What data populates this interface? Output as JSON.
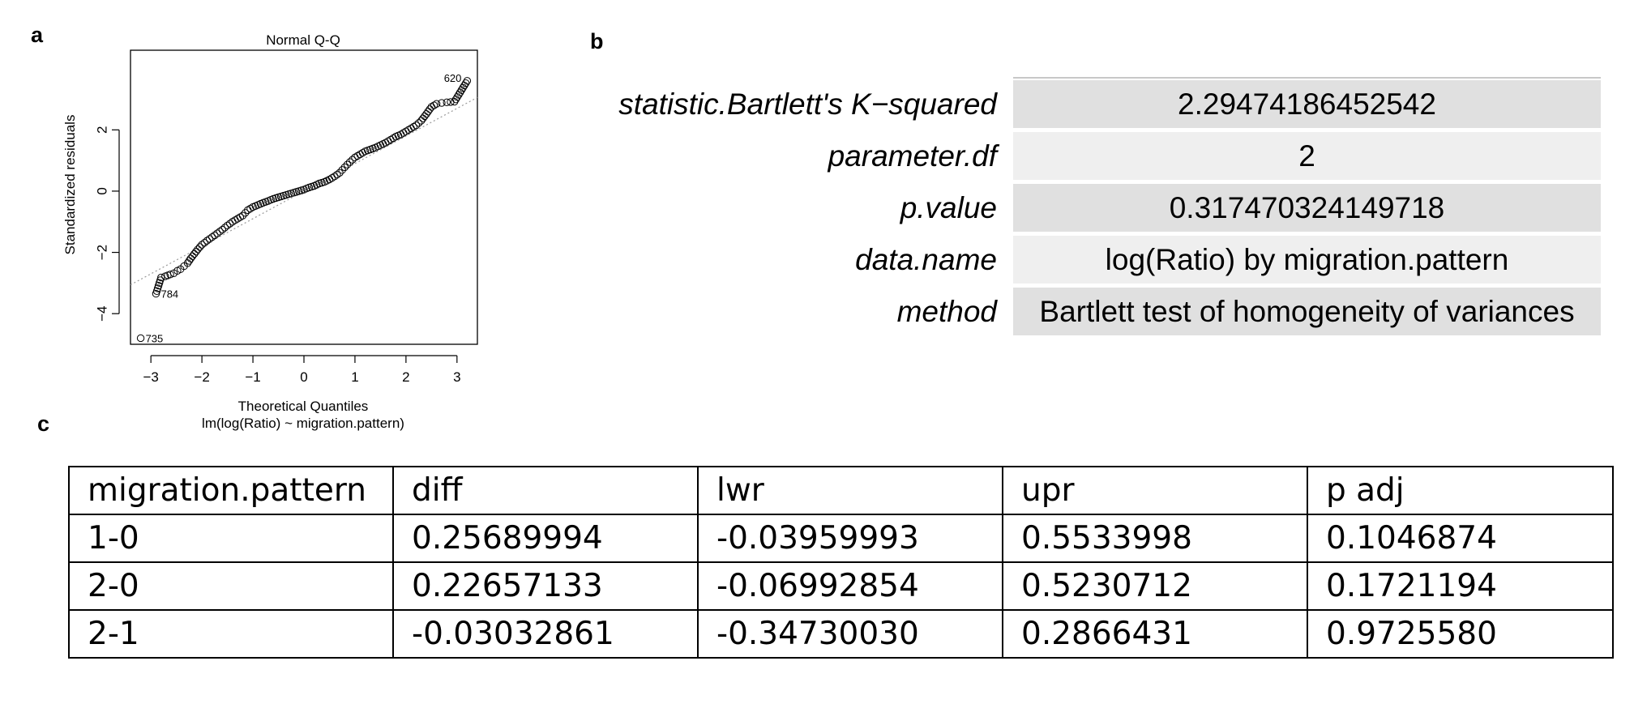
{
  "panel_labels": {
    "a": "a",
    "b": "b",
    "c": "c"
  },
  "chart_data": {
    "type": "scatter",
    "title": "Normal Q-Q",
    "subtitle": "lm(log(Ratio) ~ migration.pattern)",
    "xlabel": "Theoretical Quantiles",
    "ylabel": "Standardized residuals",
    "xlim": [
      -3.4,
      3.4
    ],
    "ylim": [
      -5.0,
      4.6
    ],
    "xticks": [
      -3,
      -2,
      -1,
      0,
      1,
      2,
      3
    ],
    "yticks": [
      -4,
      -2,
      0,
      2
    ],
    "reference_line": {
      "slope": 0.9,
      "intercept": 0.0,
      "style": "dotted",
      "color": "#999999"
    },
    "point_style": "open-circle",
    "labeled_points": [
      {
        "label": "620",
        "x": 3.2,
        "y": 3.6
      },
      {
        "label": "784",
        "x": -2.9,
        "y": -3.35
      },
      {
        "label": "735",
        "x": -3.2,
        "y": -4.8
      }
    ],
    "series": [
      {
        "points": [
          [
            -3.2,
            -4.8
          ],
          [
            -2.9,
            -3.35
          ],
          [
            -2.8,
            -2.82
          ],
          [
            -2.72,
            -2.78
          ],
          [
            -2.62,
            -2.72
          ],
          [
            -2.55,
            -2.68
          ],
          [
            -2.48,
            -2.6
          ],
          [
            -2.42,
            -2.55
          ],
          [
            -2.35,
            -2.45
          ],
          [
            -2.28,
            -2.35
          ],
          [
            -2.22,
            -2.2
          ],
          [
            -2.15,
            -2.05
          ],
          [
            -2.08,
            -1.9
          ],
          [
            -2.0,
            -1.75
          ],
          [
            -1.9,
            -1.62
          ],
          [
            -1.8,
            -1.5
          ],
          [
            -1.7,
            -1.38
          ],
          [
            -1.6,
            -1.26
          ],
          [
            -1.5,
            -1.12
          ],
          [
            -1.4,
            -1.0
          ],
          [
            -1.3,
            -0.9
          ],
          [
            -1.2,
            -0.8
          ],
          [
            -1.1,
            -0.62
          ],
          [
            -1.0,
            -0.52
          ],
          [
            -0.9,
            -0.45
          ],
          [
            -0.8,
            -0.38
          ],
          [
            -0.7,
            -0.32
          ],
          [
            -0.6,
            -0.25
          ],
          [
            -0.5,
            -0.2
          ],
          [
            -0.4,
            -0.15
          ],
          [
            -0.3,
            -0.1
          ],
          [
            -0.2,
            -0.05
          ],
          [
            -0.1,
            0.0
          ],
          [
            0.0,
            0.05
          ],
          [
            0.1,
            0.12
          ],
          [
            0.2,
            0.17
          ],
          [
            0.3,
            0.25
          ],
          [
            0.4,
            0.3
          ],
          [
            0.5,
            0.38
          ],
          [
            0.6,
            0.48
          ],
          [
            0.7,
            0.6
          ],
          [
            0.8,
            0.78
          ],
          [
            0.9,
            0.95
          ],
          [
            1.0,
            1.1
          ],
          [
            1.1,
            1.2
          ],
          [
            1.2,
            1.3
          ],
          [
            1.3,
            1.36
          ],
          [
            1.4,
            1.42
          ],
          [
            1.5,
            1.5
          ],
          [
            1.6,
            1.58
          ],
          [
            1.7,
            1.68
          ],
          [
            1.8,
            1.78
          ],
          [
            1.9,
            1.85
          ],
          [
            2.0,
            1.95
          ],
          [
            2.1,
            2.05
          ],
          [
            2.2,
            2.15
          ],
          [
            2.3,
            2.3
          ],
          [
            2.4,
            2.52
          ],
          [
            2.5,
            2.75
          ],
          [
            2.6,
            2.85
          ],
          [
            2.7,
            2.88
          ],
          [
            2.8,
            2.9
          ],
          [
            2.95,
            2.92
          ],
          [
            3.2,
            3.6
          ]
        ]
      }
    ]
  },
  "bartlett": {
    "rows": [
      {
        "key": "statistic.Bartlett's K−squared",
        "value": "2.29474186452542"
      },
      {
        "key": "parameter.df",
        "value": "2"
      },
      {
        "key": "p.value",
        "value": "0.317470324149718"
      },
      {
        "key": "data.name",
        "value": "log(Ratio) by migration.pattern"
      },
      {
        "key": "method",
        "value": "Bartlett test of homogeneity of variances"
      }
    ]
  },
  "tukey": {
    "headers": [
      "migration.pattern",
      "diff",
      "lwr",
      "upr",
      "p adj"
    ],
    "rows": [
      [
        "1-0",
        "0.25689994",
        "-0.03959993",
        "0.5533998",
        "0.1046874"
      ],
      [
        "2-0",
        "0.22657133",
        "-0.06992854",
        "0.5230712",
        "0.1721194"
      ],
      [
        "2-1",
        "-0.03032861",
        "-0.34730030",
        "0.2866431",
        "0.9725580"
      ]
    ]
  }
}
